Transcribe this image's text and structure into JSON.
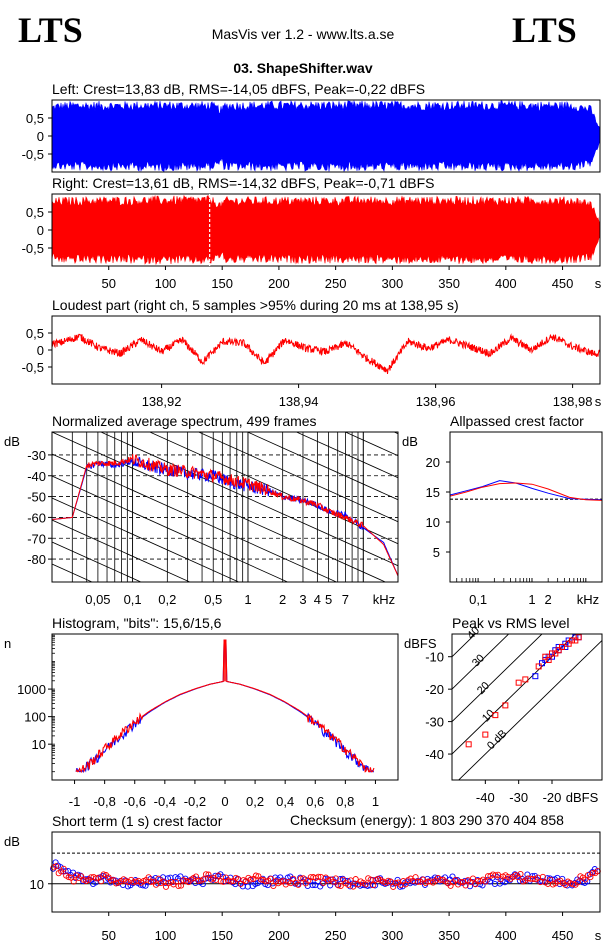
{
  "header": {
    "logo_left": "LTS",
    "logo_right": "LTS",
    "app_title": "MasVis ver 1.2 - www.lts.a.se",
    "file_name": "03. ShapeShifter.wav"
  },
  "colors": {
    "left": "#0000ff",
    "right": "#ff0000",
    "grid": "#000000"
  },
  "chart_data": [
    {
      "id": "left-waveform",
      "type": "area",
      "title": "Left: Crest=13,83 dB, RMS=-14,05 dBFS, Peak=-0,22 dBFS",
      "yticks": [
        "0,5",
        "0",
        "-0,5"
      ],
      "ytick_values": [
        0.5,
        0,
        -0.5
      ],
      "ylim": [
        -1,
        1
      ],
      "xlim": [
        0,
        483
      ],
      "envelope": {
        "x": [
          0,
          5,
          20,
          60,
          100,
          140,
          148,
          150,
          152,
          200,
          300,
          400,
          460,
          475,
          483
        ],
        "peak": [
          0.9,
          0.95,
          0.97,
          0.97,
          0.98,
          0.97,
          0.85,
          0.8,
          0.97,
          0.98,
          0.98,
          0.98,
          0.97,
          0.85,
          0.2
        ]
      }
    },
    {
      "id": "right-waveform",
      "type": "area",
      "title": "Right: Crest=13,61 dB, RMS=-14,32 dBFS, Peak=-0,71 dBFS",
      "yticks": [
        "0,5",
        "0",
        "-0,5"
      ],
      "ytick_values": [
        0.5,
        0,
        -0.5
      ],
      "ylim": [
        -1,
        1
      ],
      "xlim": [
        0,
        483
      ],
      "xticks": [
        "50",
        "100",
        "150",
        "200",
        "250",
        "300",
        "350",
        "400",
        "450",
        "s"
      ],
      "xtick_values": [
        50,
        100,
        150,
        200,
        250,
        300,
        350,
        400,
        450
      ],
      "marker_x": 138.95,
      "envelope": {
        "x": [
          0,
          5,
          20,
          60,
          100,
          140,
          148,
          150,
          152,
          200,
          300,
          400,
          460,
          475,
          483
        ],
        "peak": [
          0.85,
          0.92,
          0.93,
          0.94,
          0.95,
          0.96,
          0.8,
          0.78,
          0.93,
          0.93,
          0.94,
          0.94,
          0.93,
          0.85,
          0.2
        ]
      }
    },
    {
      "id": "loudest-part",
      "type": "line",
      "title": "Loudest part (right ch, 5 samples >95% during 20 ms at 138,95 s)",
      "yticks": [
        "0,5",
        "0",
        "-0,5"
      ],
      "ytick_values": [
        0.5,
        0,
        -0.5
      ],
      "ylim": [
        -1,
        1
      ],
      "xlim": [
        138.904,
        138.984
      ],
      "xticks": [
        "138,92",
        "138,94",
        "138,96",
        "138,98",
        "s"
      ],
      "xtick_values": [
        138.92,
        138.94,
        138.96,
        138.98
      ],
      "x": [
        138.905,
        138.908,
        138.911,
        138.914,
        138.917,
        138.92,
        138.923,
        138.926,
        138.929,
        138.932,
        138.935,
        138.938,
        138.941,
        138.944,
        138.947,
        138.95,
        138.953,
        138.956,
        138.959,
        138.962,
        138.965,
        138.968,
        138.971,
        138.974,
        138.977,
        138.98,
        138.983
      ],
      "values": [
        0.2,
        0.4,
        0.05,
        -0.1,
        0.3,
        -0.05,
        0.3,
        -0.35,
        0.25,
        0.2,
        -0.4,
        0.3,
        0.05,
        -0.05,
        0.2,
        -0.25,
        -0.6,
        0.25,
        0.05,
        0.3,
        0.1,
        -0.1,
        0.35,
        0.0,
        0.4,
        0.1,
        -0.1
      ]
    },
    {
      "id": "avg-spectrum",
      "type": "line",
      "title": "Normalized average spectrum, 499 frames",
      "yunit": "dB",
      "xunit": "kHz",
      "yticks": [
        "-30",
        "-40",
        "-50",
        "-60",
        "-70",
        "-80"
      ],
      "ytick_values": [
        -30,
        -40,
        -50,
        -60,
        -70,
        -80
      ],
      "ylim": [
        -91,
        -19
      ],
      "xlim": [
        0.02,
        20
      ],
      "xscale": "log",
      "xticks": [
        "0,05",
        "0,1",
        "0,2",
        "0,5",
        "1",
        "2",
        "3",
        "4",
        "5",
        "7",
        "kHz"
      ],
      "xtick_values": [
        0.05,
        0.1,
        0.2,
        0.5,
        1,
        2,
        3,
        4,
        5,
        7
      ],
      "x": [
        0.02,
        0.03,
        0.04,
        0.05,
        0.07,
        0.1,
        0.15,
        0.2,
        0.3,
        0.5,
        0.7,
        1,
        1.5,
        2,
        3,
        4,
        5,
        7,
        10,
        15,
        20
      ],
      "series": [
        {
          "name": "Left",
          "values": [
            -61,
            -60,
            -36,
            -34,
            -35,
            -33,
            -36,
            -37,
            -39,
            -40,
            -43,
            -45,
            -47,
            -50,
            -52,
            -54,
            -57,
            -59,
            -65,
            -72,
            -88
          ]
        },
        {
          "name": "Right",
          "values": [
            -61,
            -60,
            -35,
            -34,
            -34,
            -32,
            -35,
            -37,
            -38,
            -40,
            -42,
            -44,
            -47,
            -50,
            -52,
            -54,
            -57,
            -60,
            -64,
            -73,
            -88
          ]
        }
      ]
    },
    {
      "id": "allpassed-crest",
      "type": "line",
      "title": "Allpassed crest factor",
      "yunit": "dB",
      "xunit": "kHz",
      "yticks": [
        "20",
        "15",
        "10",
        "5"
      ],
      "ytick_values": [
        20,
        15,
        10,
        5
      ],
      "ylim": [
        0,
        25
      ],
      "xlim": [
        0.03,
        20
      ],
      "xscale": "log",
      "xticks": [
        "0,1",
        "1",
        "2",
        "kHz"
      ],
      "xtick_values": [
        0.1,
        1,
        2
      ],
      "reference": 13.8,
      "x": [
        0.03,
        0.06,
        0.12,
        0.25,
        0.5,
        1,
        2,
        5,
        10,
        20
      ],
      "series": [
        {
          "name": "Left",
          "values": [
            14.5,
            15.2,
            15.9,
            16.9,
            16.5,
            15.6,
            14.8,
            13.9,
            13.8,
            13.7
          ]
        },
        {
          "name": "Right",
          "values": [
            14.3,
            15.0,
            15.8,
            16.4,
            16.5,
            16.3,
            15.5,
            14.1,
            13.7,
            13.6
          ]
        }
      ]
    },
    {
      "id": "histogram",
      "type": "line",
      "title": "Histogram, \"bits\": 15,6/15,6",
      "yunit": "n",
      "yscale": "log",
      "yticks": [
        "1000",
        "100",
        "10"
      ],
      "ytick_values": [
        1000,
        100,
        10
      ],
      "ylim": [
        0.5,
        100000
      ],
      "xlim": [
        -1.15,
        1.15
      ],
      "xticks": [
        "-1",
        "-0,8",
        "-0,6",
        "-0,4",
        "-0,2",
        "0",
        "0,2",
        "0,4",
        "0,6",
        "0,8",
        "1"
      ],
      "xtick_values": [
        -1,
        -0.8,
        -0.6,
        -0.4,
        -0.2,
        0,
        0.2,
        0.4,
        0.6,
        0.8,
        1
      ],
      "x": [
        -0.97,
        -0.9,
        -0.8,
        -0.7,
        -0.6,
        -0.5,
        -0.4,
        -0.3,
        -0.2,
        -0.1,
        -0.01,
        0,
        0.01,
        0.1,
        0.2,
        0.3,
        0.4,
        0.5,
        0.6,
        0.7,
        0.8,
        0.9,
        0.97
      ],
      "series": [
        {
          "name": "Left",
          "values": [
            1,
            2,
            6,
            20,
            60,
            150,
            330,
            620,
            1000,
            1500,
            1900,
            60000,
            1900,
            1500,
            1000,
            620,
            330,
            150,
            60,
            20,
            6,
            2,
            1
          ]
        },
        {
          "name": "Right",
          "values": [
            1,
            2,
            7,
            22,
            65,
            160,
            340,
            640,
            1020,
            1500,
            1900,
            60000,
            1900,
            1500,
            1020,
            640,
            340,
            160,
            65,
            22,
            7,
            2,
            1
          ]
        }
      ]
    },
    {
      "id": "peak-vs-rms",
      "type": "scatter",
      "title": "Peak vs RMS level",
      "yunit": "dBFS",
      "xunit": "dBFS",
      "yticks": [
        "-10",
        "-20",
        "-30",
        "-40"
      ],
      "ytick_values": [
        -10,
        -20,
        -30,
        -40
      ],
      "ylim": [
        -48,
        -3
      ],
      "xlim": [
        -50,
        -5
      ],
      "xticks": [
        "-40",
        "-30",
        "-20",
        "dBFS"
      ],
      "xtick_values": [
        -40,
        -30,
        -20
      ],
      "diagonal_labels": [
        "40",
        "30",
        "20",
        "10",
        "0 dB"
      ],
      "series": [
        {
          "name": "Left",
          "points": [
            [
              -25,
              -16
            ],
            [
              -23,
              -12
            ],
            [
              -22,
              -11
            ],
            [
              -21,
              -10
            ],
            [
              -20,
              -9
            ],
            [
              -19,
              -8
            ],
            [
              -18,
              -8
            ],
            [
              -17,
              -7
            ],
            [
              -16,
              -6
            ],
            [
              -15,
              -5
            ],
            [
              -14,
              -5
            ],
            [
              -13,
              -4
            ],
            [
              -12,
              -4
            ],
            [
              -20,
              -10
            ],
            [
              -18,
              -7
            ],
            [
              -16,
              -7
            ]
          ]
        },
        {
          "name": "Right",
          "points": [
            [
              -45,
              -37
            ],
            [
              -40,
              -34
            ],
            [
              -37,
              -28
            ],
            [
              -34,
              -25
            ],
            [
              -30,
              -18
            ],
            [
              -28,
              -17
            ],
            [
              -24,
              -13
            ],
            [
              -22,
              -10
            ],
            [
              -20,
              -9
            ],
            [
              -19,
              -9
            ],
            [
              -17,
              -7
            ],
            [
              -15,
              -6
            ],
            [
              -14,
              -5
            ],
            [
              -13,
              -5
            ],
            [
              -12,
              -4
            ],
            [
              -21,
              -11
            ],
            [
              -18,
              -8
            ]
          ]
        }
      ]
    },
    {
      "id": "short-term-crest",
      "type": "scatter",
      "title": "Short term (1 s) crest factor",
      "yunit": "dB",
      "yticks": [
        "10"
      ],
      "ytick_values": [
        10
      ],
      "ylim": [
        4,
        21
      ],
      "reference": 16.5,
      "xlim": [
        0,
        483
      ],
      "xticks": [
        "50",
        "100",
        "150",
        "200",
        "250",
        "300",
        "350",
        "400",
        "450",
        "s"
      ],
      "xtick_values": [
        50,
        100,
        150,
        200,
        250,
        300,
        350,
        400,
        450
      ],
      "series": [
        {
          "name": "Left",
          "x": [
            5,
            15,
            30,
            50,
            70,
            90,
            110,
            130,
            150,
            170,
            190,
            210,
            230,
            250,
            270,
            290,
            310,
            330,
            350,
            370,
            390,
            410,
            430,
            450,
            470,
            480
          ],
          "values": [
            14,
            12,
            10.5,
            11,
            10,
            10.5,
            11,
            10.5,
            11.5,
            10,
            10.5,
            11,
            10,
            10.5,
            10,
            10.5,
            10,
            10.5,
            11,
            10,
            10.5,
            11.5,
            11,
            10.5,
            10,
            13
          ]
        },
        {
          "name": "Right",
          "x": [
            8,
            20,
            40,
            60,
            80,
            100,
            120,
            140,
            160,
            180,
            200,
            220,
            240,
            260,
            280,
            300,
            320,
            340,
            360,
            380,
            400,
            420,
            440,
            460,
            478
          ],
          "values": [
            13,
            11,
            11.5,
            10.5,
            11,
            10,
            10.5,
            11.5,
            10.5,
            11,
            10,
            10.5,
            11,
            10,
            10.5,
            10,
            11,
            10.5,
            10,
            11,
            12,
            11,
            10.5,
            10,
            12.5
          ]
        }
      ]
    }
  ],
  "checksum": {
    "label": "Checksum (energy):",
    "value": "1 803 290 370 404 858"
  }
}
